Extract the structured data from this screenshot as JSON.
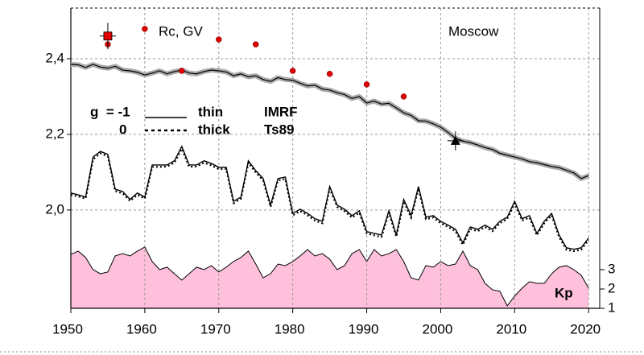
{
  "chart_data": {
    "type": "line",
    "xlim": [
      1950,
      2021.5
    ],
    "xticks": [
      1950,
      1960,
      1970,
      1980,
      1990,
      2000,
      2010,
      2020
    ],
    "ylim": [
      1.74,
      2.534
    ],
    "yticks": [
      {
        "value": 2.0,
        "label": "2,0"
      },
      {
        "value": 2.2,
        "label": "2,2"
      },
      {
        "value": 2.4,
        "label": "2,4"
      }
    ],
    "y2lim": [
      1,
      16.54
    ],
    "y2ticks": [
      1,
      2,
      3
    ],
    "grid": true,
    "x": [
      1950,
      1951,
      1952,
      1953,
      1954,
      1955,
      1956,
      1957,
      1958,
      1959,
      1960,
      1961,
      1962,
      1963,
      1964,
      1965,
      1966,
      1967,
      1968,
      1969,
      1970,
      1971,
      1972,
      1973,
      1974,
      1975,
      1976,
      1977,
      1978,
      1979,
      1980,
      1981,
      1982,
      1983,
      1984,
      1985,
      1986,
      1987,
      1988,
      1989,
      1990,
      1991,
      1992,
      1993,
      1994,
      1995,
      1996,
      1997,
      1998,
      1999,
      2000,
      2001,
      2002,
      2003,
      2004,
      2005,
      2006,
      2007,
      2008,
      2009,
      2010,
      2011,
      2012,
      2013,
      2014,
      2015,
      2016,
      2017,
      2018,
      2019,
      2020
    ],
    "series": [
      {
        "name": "thin",
        "color": "#000000",
        "values": [
          2.045,
          2.04,
          2.034,
          2.14,
          2.155,
          2.147,
          2.055,
          2.049,
          2.028,
          2.045,
          2.034,
          2.119,
          2.119,
          2.119,
          2.13,
          2.168,
          2.119,
          2.119,
          2.13,
          2.123,
          2.113,
          2.113,
          2.023,
          2.034,
          2.13,
          2.104,
          2.083,
          2.013,
          2.083,
          2.087,
          1.991,
          2.002,
          1.991,
          1.977,
          1.97,
          2.062,
          2.013,
          2.002,
          1.985,
          1.998,
          1.943,
          1.938,
          1.934,
          1.998,
          1.934,
          2.028,
          1.985,
          2.062,
          1.981,
          1.985,
          1.97,
          1.96,
          1.949,
          1.913,
          1.955,
          1.949,
          1.96,
          1.949,
          1.97,
          1.981,
          2.023,
          1.977,
          1.985,
          1.938,
          1.97,
          1.991,
          1.934,
          1.9,
          1.896,
          1.9,
          1.926
        ]
      },
      {
        "name": "thick",
        "color": "#000000",
        "values": [
          2.04,
          2.036,
          2.03,
          2.134,
          2.15,
          2.142,
          2.05,
          2.044,
          2.024,
          2.04,
          2.03,
          2.114,
          2.114,
          2.115,
          2.125,
          2.162,
          2.114,
          2.115,
          2.125,
          2.118,
          2.108,
          2.109,
          2.018,
          2.03,
          2.125,
          2.099,
          2.078,
          2.008,
          2.078,
          2.082,
          1.986,
          1.997,
          1.986,
          1.972,
          1.965,
          2.057,
          2.008,
          1.997,
          1.98,
          1.993,
          1.938,
          1.933,
          1.929,
          1.993,
          1.929,
          2.023,
          1.98,
          2.057,
          1.976,
          1.98,
          1.965,
          1.955,
          1.944,
          1.908,
          1.95,
          1.944,
          1.955,
          1.944,
          1.965,
          1.976,
          2.018,
          1.972,
          1.98,
          1.933,
          1.965,
          1.986,
          1.929,
          1.895,
          1.891,
          1.895,
          1.921
        ]
      }
    ],
    "upper_values": [
      2.385,
      2.384,
      2.377,
      2.385,
      2.378,
      2.375,
      2.38,
      2.37,
      2.368,
      2.364,
      2.357,
      2.362,
      2.368,
      2.36,
      2.366,
      2.37,
      2.362,
      2.36,
      2.366,
      2.37,
      2.368,
      2.365,
      2.355,
      2.36,
      2.352,
      2.355,
      2.345,
      2.34,
      2.35,
      2.345,
      2.343,
      2.335,
      2.328,
      2.33,
      2.32,
      2.317,
      2.31,
      2.305,
      2.295,
      2.3,
      2.283,
      2.288,
      2.28,
      2.282,
      2.27,
      2.257,
      2.25,
      2.236,
      2.235,
      2.228,
      2.219,
      2.205,
      2.19,
      2.182,
      2.178,
      2.172,
      2.165,
      2.16,
      2.15,
      2.145,
      2.14,
      2.135,
      2.128,
      2.125,
      2.12,
      2.115,
      2.112,
      2.105,
      2.098,
      2.083,
      2.091
    ],
    "kp": {
      "name": "Kp",
      "color": "#ffc0dc",
      "axis": "y2",
      "values": [
        3.79,
        3.96,
        3.63,
        3.0,
        2.79,
        2.88,
        3.71,
        3.83,
        3.71,
        3.96,
        4.17,
        3.42,
        3.0,
        3.13,
        2.79,
        2.46,
        2.79,
        3.13,
        3.0,
        3.21,
        2.88,
        3.13,
        3.42,
        3.63,
        3.96,
        3.29,
        2.58,
        2.79,
        3.29,
        3.21,
        3.42,
        3.71,
        4.04,
        3.71,
        3.83,
        3.54,
        3.0,
        3.21,
        3.83,
        4.04,
        3.42,
        4.04,
        3.71,
        3.83,
        4.04,
        3.42,
        2.58,
        2.46,
        3.21,
        3.13,
        3.42,
        3.21,
        3.29,
        3.96,
        3.21,
        3.0,
        2.29,
        1.96,
        1.88,
        1.13,
        1.63,
        2.04,
        2.38,
        2.29,
        2.29,
        2.79,
        3.13,
        3.21,
        3.0,
        2.71,
        2.04
      ]
    },
    "rc": {
      "name": "Rc, GV",
      "color": "#e00000",
      "x": [
        1955,
        1960,
        1965,
        1970,
        1975,
        1980,
        1985,
        1990,
        1995
      ],
      "values": [
        2.438,
        2.479,
        2.368,
        2.451,
        2.438,
        2.368,
        2.36,
        2.332,
        2.3
      ]
    },
    "markers": [
      {
        "x": 1955,
        "y": 2.46,
        "err": 0.035,
        "color": "#e00000"
      },
      {
        "x": 2002,
        "y": 2.183,
        "err": 0.025,
        "color": "#000000"
      }
    ],
    "location": "Moscow",
    "legend": {
      "g_label": "g  = -1",
      "g0_label": "0",
      "models": [
        "IMRF",
        "Ts89"
      ]
    }
  }
}
